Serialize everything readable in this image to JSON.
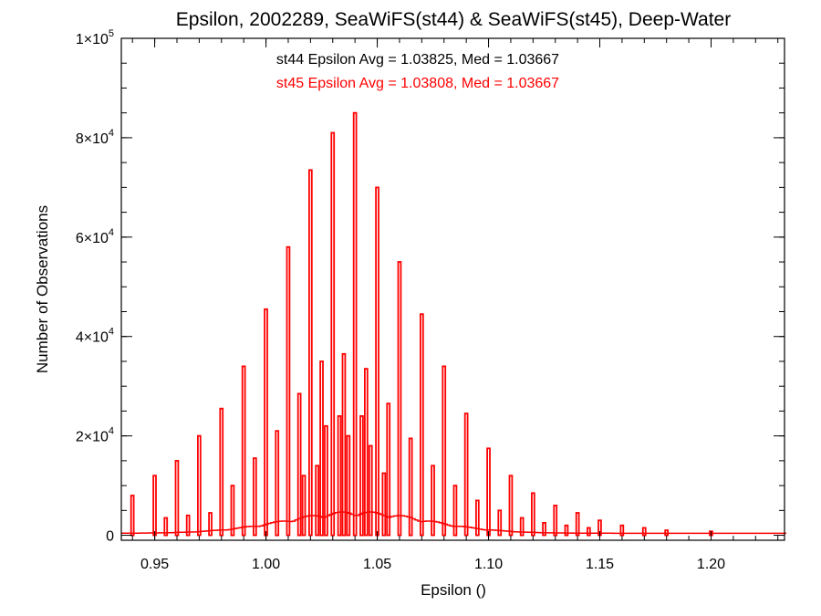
{
  "chart_data": {
    "type": "bar",
    "title": "Epsilon, 2002289, SeaWiFS(st44) & SeaWiFS(st45), Deep-Water",
    "xlabel": "Epsilon ()",
    "ylabel": "Number of Observations",
    "xlim": [
      0.935,
      1.233
    ],
    "ylim": [
      -1000,
      100000
    ],
    "grid": false,
    "annotations": [
      {
        "text": "st44 Epsilon Avg = 1.03825, Med = 1.03667",
        "color": "#000000"
      },
      {
        "text": "st45 Epsilon Avg = 1.03808, Med = 1.03667",
        "color": "#ff0000"
      }
    ],
    "x_ticks": [
      {
        "value": 0.95,
        "label": "0.95"
      },
      {
        "value": 1.0,
        "label": "1.00"
      },
      {
        "value": 1.05,
        "label": "1.05"
      },
      {
        "value": 1.1,
        "label": "1.10"
      },
      {
        "value": 1.15,
        "label": "1.15"
      },
      {
        "value": 1.2,
        "label": "1.20"
      }
    ],
    "y_ticks": [
      {
        "value": 0,
        "label": "0",
        "mantissa": "",
        "exponent": ""
      },
      {
        "value": 20000,
        "label": "",
        "mantissa": "2×10",
        "exponent": "4"
      },
      {
        "value": 40000,
        "label": "",
        "mantissa": "4×10",
        "exponent": "4"
      },
      {
        "value": 60000,
        "label": "",
        "mantissa": "6×10",
        "exponent": "4"
      },
      {
        "value": 80000,
        "label": "",
        "mantissa": "8×10",
        "exponent": "4"
      },
      {
        "value": 100000,
        "label": "",
        "mantissa": "1×10",
        "exponent": "5"
      }
    ],
    "spikes": [
      {
        "x": 0.94,
        "y": 8000
      },
      {
        "x": 0.95,
        "y": 12000
      },
      {
        "x": 0.96,
        "y": 15000
      },
      {
        "x": 0.97,
        "y": 20000
      },
      {
        "x": 0.98,
        "y": 25500
      },
      {
        "x": 0.99,
        "y": 34000
      },
      {
        "x": 1.0,
        "y": 45500
      },
      {
        "x": 1.01,
        "y": 58000
      },
      {
        "x": 1.02,
        "y": 73500
      },
      {
        "x": 1.03,
        "y": 81000
      },
      {
        "x": 1.04,
        "y": 85000
      },
      {
        "x": 1.05,
        "y": 70000
      },
      {
        "x": 1.06,
        "y": 55000
      },
      {
        "x": 1.07,
        "y": 44500
      },
      {
        "x": 1.08,
        "y": 34000
      },
      {
        "x": 1.09,
        "y": 24500
      },
      {
        "x": 1.1,
        "y": 17500
      },
      {
        "x": 1.11,
        "y": 12000
      },
      {
        "x": 1.12,
        "y": 8500
      },
      {
        "x": 1.13,
        "y": 6000
      },
      {
        "x": 1.14,
        "y": 4500
      },
      {
        "x": 1.15,
        "y": 3000
      },
      {
        "x": 1.16,
        "y": 2000
      },
      {
        "x": 1.17,
        "y": 1500
      },
      {
        "x": 1.18,
        "y": 1000
      },
      {
        "x": 1.2,
        "y": 800
      },
      {
        "x": 0.955,
        "y": 3500
      },
      {
        "x": 0.965,
        "y": 4000
      },
      {
        "x": 0.975,
        "y": 4500
      },
      {
        "x": 0.985,
        "y": 10000
      },
      {
        "x": 0.995,
        "y": 15500
      },
      {
        "x": 1.005,
        "y": 21000
      },
      {
        "x": 1.015,
        "y": 28500
      },
      {
        "x": 1.025,
        "y": 35000
      },
      {
        "x": 1.035,
        "y": 36500
      },
      {
        "x": 1.045,
        "y": 33500
      },
      {
        "x": 1.055,
        "y": 26500
      },
      {
        "x": 1.065,
        "y": 19500
      },
      {
        "x": 1.075,
        "y": 14000
      },
      {
        "x": 1.085,
        "y": 10000
      },
      {
        "x": 1.095,
        "y": 7000
      },
      {
        "x": 1.105,
        "y": 5000
      },
      {
        "x": 1.115,
        "y": 3500
      },
      {
        "x": 1.125,
        "y": 2500
      },
      {
        "x": 1.135,
        "y": 2000
      },
      {
        "x": 1.145,
        "y": 1500
      },
      {
        "x": 1.043,
        "y": 24000
      },
      {
        "x": 1.033,
        "y": 24000
      },
      {
        "x": 1.037,
        "y": 20000
      },
      {
        "x": 1.027,
        "y": 22000
      },
      {
        "x": 1.047,
        "y": 18000
      },
      {
        "x": 1.023,
        "y": 14000
      },
      {
        "x": 1.053,
        "y": 12500
      },
      {
        "x": 1.017,
        "y": 12000
      }
    ]
  }
}
